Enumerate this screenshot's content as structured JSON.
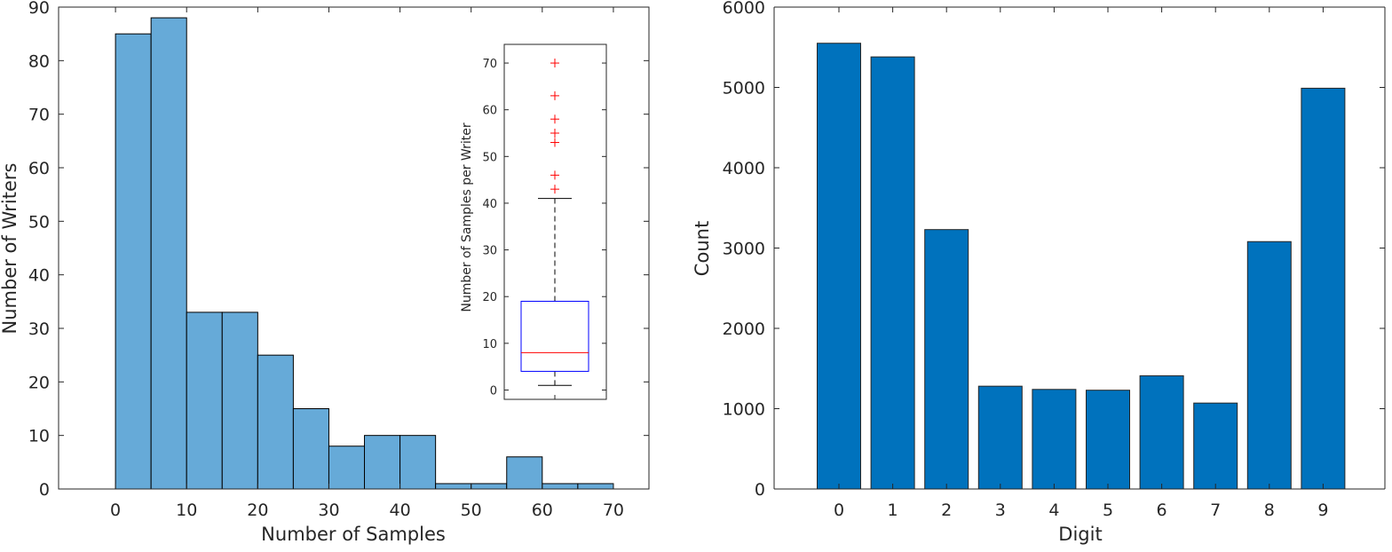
{
  "chart_data": [
    {
      "type": "bar",
      "subtype": "histogram",
      "xlabel": "Number of Samples",
      "ylabel": "Number of Writers",
      "xlim": [
        -8,
        75
      ],
      "ylim": [
        0,
        90
      ],
      "bin_edges": [
        0,
        5,
        10,
        15,
        20,
        25,
        30,
        35,
        40,
        45,
        50,
        55,
        60,
        65,
        70
      ],
      "values": [
        85,
        88,
        33,
        33,
        25,
        15,
        8,
        10,
        10,
        1,
        1,
        6,
        1,
        1
      ],
      "x_ticks": [
        "0",
        "10",
        "20",
        "30",
        "40",
        "50",
        "60",
        "70"
      ],
      "y_ticks": [
        "0",
        "10",
        "20",
        "30",
        "40",
        "50",
        "60",
        "70",
        "80",
        "90"
      ],
      "bar_color": "#66aad8",
      "inset": {
        "type": "boxplot",
        "ylabel": "Number of Samples per  Writer",
        "ylim": [
          -2,
          74
        ],
        "y_ticks": [
          "0",
          "10",
          "20",
          "30",
          "40",
          "50",
          "60",
          "70"
        ],
        "whisker_low": 1,
        "q1": 4,
        "median": 8,
        "q3": 19,
        "whisker_high": 41,
        "outliers": [
          43,
          46,
          53,
          55,
          58,
          63,
          70
        ],
        "box_color": "#0000ff",
        "median_color": "#ff0000",
        "outlier_color": "#ff0000"
      }
    },
    {
      "type": "bar",
      "xlabel": "Digit",
      "ylabel": "Count",
      "ylim": [
        0,
        6000
      ],
      "categories": [
        "0",
        "1",
        "2",
        "3",
        "4",
        "5",
        "6",
        "7",
        "8",
        "9"
      ],
      "values": [
        5550,
        5380,
        3230,
        1280,
        1240,
        1230,
        1410,
        1070,
        3080,
        4990
      ],
      "y_ticks": [
        "0",
        "1000",
        "2000",
        "3000",
        "4000",
        "5000",
        "6000"
      ],
      "bar_color": "#0072bd"
    }
  ]
}
